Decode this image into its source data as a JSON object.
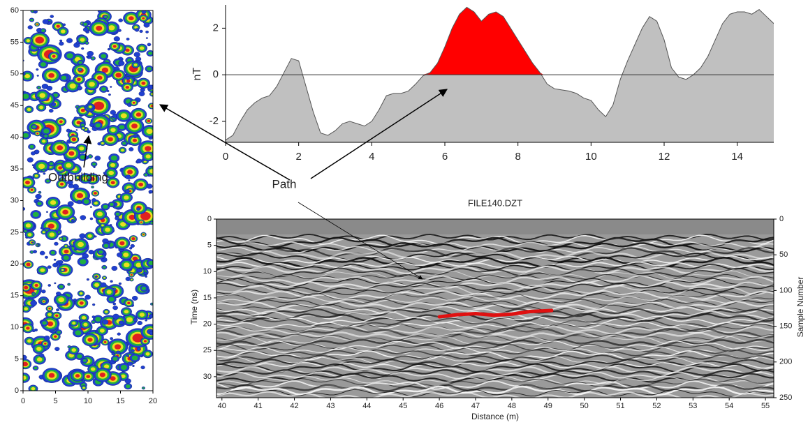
{
  "annotations": {
    "outbuilding": "Outbuilding",
    "path": "Path"
  },
  "chart_data": [
    {
      "type": "raster",
      "xlim": [
        0,
        20
      ],
      "ylim": [
        0,
        60
      ],
      "xticks": [
        0,
        5,
        10,
        15,
        20
      ],
      "yticks": [
        0,
        5,
        10,
        15,
        20,
        25,
        30,
        35,
        40,
        45,
        50,
        55,
        60
      ],
      "palette": [
        "#2040d0",
        "#20b040",
        "#e8e020",
        "#e02020"
      ]
    },
    {
      "type": "area",
      "ylabel": "nT",
      "xlim": [
        0,
        15
      ],
      "ylim": [
        -2.9,
        3
      ],
      "xticks": [
        0,
        2,
        4,
        6,
        8,
        10,
        12,
        14
      ],
      "yticks": [
        -2,
        0,
        2
      ],
      "color": "#c0c0c0",
      "highlight_color": "#ff0000",
      "highlight_xlim": [
        5.4,
        8.7
      ],
      "x": [
        0,
        0.2,
        0.4,
        0.6,
        0.8,
        1.0,
        1.2,
        1.4,
        1.6,
        1.8,
        2.0,
        2.2,
        2.4,
        2.6,
        2.8,
        3.0,
        3.2,
        3.4,
        3.6,
        3.8,
        4.0,
        4.2,
        4.4,
        4.6,
        4.8,
        5.0,
        5.2,
        5.4,
        5.6,
        5.8,
        6.0,
        6.2,
        6.4,
        6.6,
        6.8,
        7.0,
        7.2,
        7.4,
        7.6,
        7.8,
        8.0,
        8.2,
        8.4,
        8.6,
        8.8,
        9.0,
        9.2,
        9.4,
        9.6,
        9.8,
        10.0,
        10.2,
        10.4,
        10.6,
        10.8,
        11.0,
        11.2,
        11.4,
        11.6,
        11.8,
        12.0,
        12.2,
        12.4,
        12.6,
        12.8,
        13.0,
        13.2,
        13.4,
        13.6,
        13.8,
        14.0,
        14.2,
        14.4,
        14.6,
        14.8,
        15.0
      ],
      "values": [
        -2.8,
        -2.6,
        -2.0,
        -1.5,
        -1.2,
        -1.0,
        -0.9,
        -0.5,
        0.1,
        0.7,
        0.6,
        -0.5,
        -1.6,
        -2.5,
        -2.6,
        -2.4,
        -2.1,
        -2.0,
        -2.1,
        -2.2,
        -2.0,
        -1.5,
        -0.9,
        -0.8,
        -0.8,
        -0.7,
        -0.4,
        -0.05,
        0.1,
        0.5,
        1.2,
        2.0,
        2.6,
        2.9,
        2.7,
        2.3,
        2.6,
        2.7,
        2.5,
        2.0,
        1.5,
        1.0,
        0.5,
        0.1,
        -0.4,
        -0.6,
        -0.65,
        -0.7,
        -0.8,
        -1.0,
        -1.1,
        -1.5,
        -1.8,
        -1.3,
        -0.2,
        0.6,
        1.3,
        2.0,
        2.5,
        2.3,
        1.5,
        0.3,
        -0.1,
        -0.2,
        0.0,
        0.3,
        0.8,
        1.5,
        2.2,
        2.6,
        2.7,
        2.7,
        2.6,
        2.8,
        2.5,
        2.2
      ]
    },
    {
      "type": "radargram",
      "title": "FILE140.DZT",
      "xlabel": "Distance (m)",
      "ylabel": "Time (ns)",
      "y2label": "Sample Number",
      "xlim": [
        39.85,
        55.23
      ],
      "ylim": [
        34,
        0
      ],
      "y2lim": [
        250,
        0
      ],
      "xticks": [
        40,
        41,
        42,
        43,
        44,
        45,
        46,
        47,
        48,
        49,
        50,
        51,
        52,
        53,
        54,
        55
      ],
      "yticks": [
        0,
        5,
        10,
        15,
        20,
        25,
        30
      ],
      "y2ticks": [
        0,
        50,
        100,
        150,
        200,
        250
      ],
      "series": [
        {
          "color": "#e01010",
          "x": [
            46,
            46.5,
            47,
            47.5,
            48,
            48.5,
            49.1
          ],
          "values": [
            18.6,
            18.2,
            18.0,
            18.3,
            18.1,
            17.6,
            17.4
          ]
        }
      ]
    }
  ]
}
